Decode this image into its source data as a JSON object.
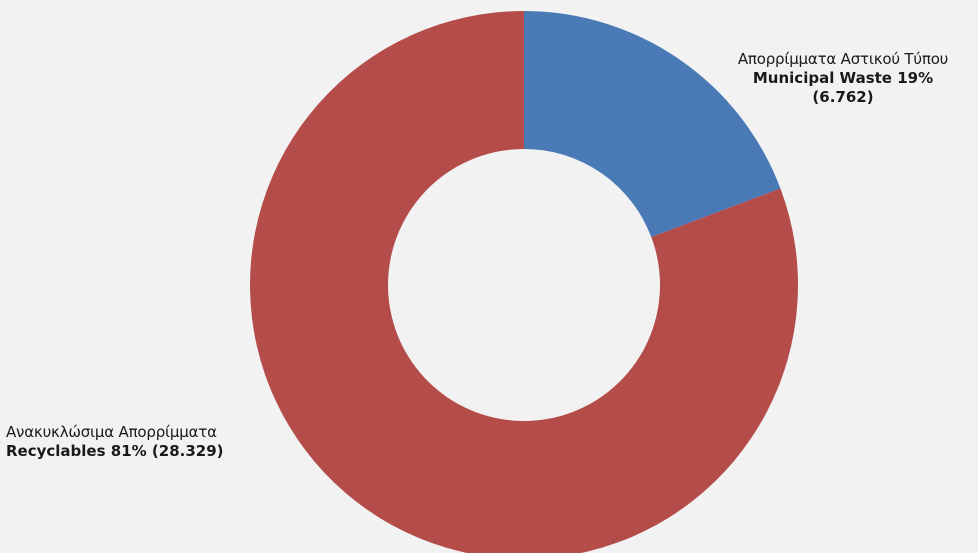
{
  "chart_data": {
    "type": "pie",
    "donut": true,
    "slices": [
      {
        "greek_label": "Απορρίμματα Αστικού Τύπου",
        "english_label": "Municipal Waste",
        "percent_label": "19%",
        "value_label": "(6.762)",
        "value": 6762,
        "color": "#4a7ab5"
      },
      {
        "greek_label": "Ανακυκλώσιμα Απορρίμματα",
        "english_label": "Recyclables",
        "percent_label": "81%",
        "value_label": "(28.329)",
        "value": 28329,
        "color": "#b44c4a"
      }
    ],
    "start_angle": "12 o'clock",
    "direction": "clockwise"
  }
}
